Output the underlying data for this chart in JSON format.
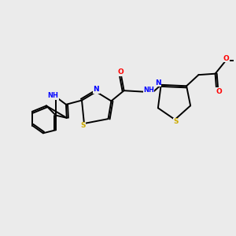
{
  "background_color": "#ebebeb",
  "atom_colors": {
    "N": "#0000ff",
    "O": "#ff0000",
    "S": "#ccaa00",
    "H": "#000000"
  },
  "bond_color": "#000000",
  "figsize": [
    3.0,
    3.0
  ],
  "dpi": 100
}
